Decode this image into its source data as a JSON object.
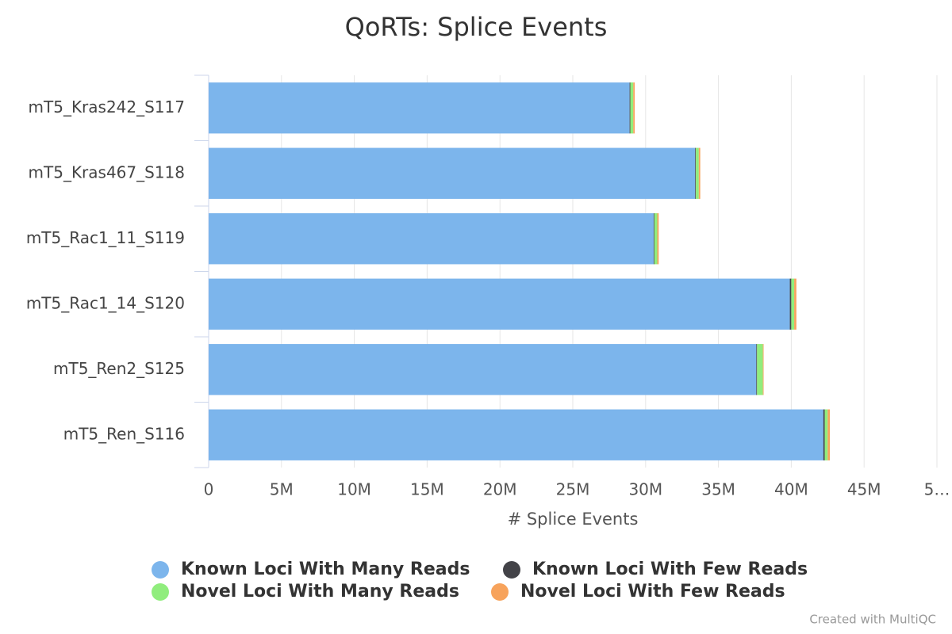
{
  "chart_data": {
    "type": "bar",
    "orientation": "horizontal",
    "stacked": true,
    "title": "QoRTs: Splice Events",
    "x_label": "# Splice Events",
    "categories": [
      "mT5_Kras242_S117",
      "mT5_Kras467_S118",
      "mT5_Rac1_11_S119",
      "mT5_Rac1_14_S120",
      "mT5_Ren2_S125",
      "mT5_Ren_S116"
    ],
    "series": [
      {
        "name": "Known Loci With Many Reads",
        "color": "#7cb5ec",
        "values": [
          28900000,
          33400000,
          30550000,
          39900000,
          37600000,
          42200000
        ]
      },
      {
        "name": "Known Loci With Few Reads",
        "color": "#434348",
        "values": [
          50000,
          50000,
          50000,
          100000,
          50000,
          100000
        ]
      },
      {
        "name": "Novel Loci With Many Reads",
        "color": "#90ed7d",
        "values": [
          200000,
          200000,
          200000,
          200000,
          400000,
          200000
        ]
      },
      {
        "name": "Novel Loci With Few Reads",
        "color": "#f7a35c",
        "values": [
          100000,
          100000,
          100000,
          150000,
          50000,
          150000
        ]
      }
    ],
    "xlim": [
      0,
      50000000
    ],
    "xticks": [
      0,
      {
        "value": 5000000,
        "label": "5M"
      },
      {
        "value": 10000000,
        "label": "10M"
      },
      {
        "value": 15000000,
        "label": "15M"
      },
      {
        "value": 20000000,
        "label": "20M"
      },
      {
        "value": 25000000,
        "label": "25M"
      },
      {
        "value": 30000000,
        "label": "30M"
      },
      {
        "value": 35000000,
        "label": "35M"
      },
      {
        "value": 40000000,
        "label": "40M"
      },
      {
        "value": 45000000,
        "label": "45M"
      },
      {
        "value": 50000000,
        "label": "5…"
      }
    ],
    "grid": true,
    "legend": "bottom",
    "credit": "Created with MultiQC"
  }
}
